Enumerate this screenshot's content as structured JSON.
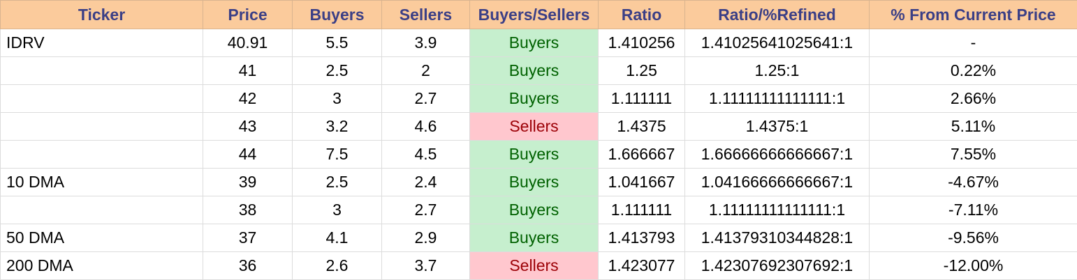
{
  "colors": {
    "header_bg": "#fbcb9c",
    "header_text": "#3b3f86",
    "buyers_bg": "#c6efce",
    "buyers_text": "#006100",
    "sellers_bg": "#ffc7ce",
    "sellers_text": "#9c0006"
  },
  "headers": [
    "Ticker",
    "Price",
    "Buyers",
    "Sellers",
    "Buyers/Sellers",
    "Ratio",
    "Ratio/%Refined",
    "% From Current Price"
  ],
  "rows": [
    {
      "ticker": "IDRV",
      "price": "40.91",
      "buyers": "5.5",
      "sellers": "3.9",
      "signal": "Buyers",
      "ratio": "1.410256",
      "refined": "1.41025641025641:1",
      "pct": "-"
    },
    {
      "ticker": "",
      "price": "41",
      "buyers": "2.5",
      "sellers": "2",
      "signal": "Buyers",
      "ratio": "1.25",
      "refined": "1.25:1",
      "pct": "0.22%"
    },
    {
      "ticker": "",
      "price": "42",
      "buyers": "3",
      "sellers": "2.7",
      "signal": "Buyers",
      "ratio": "1.111111",
      "refined": "1.11111111111111:1",
      "pct": "2.66%"
    },
    {
      "ticker": "",
      "price": "43",
      "buyers": "3.2",
      "sellers": "4.6",
      "signal": "Sellers",
      "ratio": "1.4375",
      "refined": "1.4375:1",
      "pct": "5.11%"
    },
    {
      "ticker": "",
      "price": "44",
      "buyers": "7.5",
      "sellers": "4.5",
      "signal": "Buyers",
      "ratio": "1.666667",
      "refined": "1.66666666666667:1",
      "pct": "7.55%"
    },
    {
      "ticker": "10 DMA",
      "price": "39",
      "buyers": "2.5",
      "sellers": "2.4",
      "signal": "Buyers",
      "ratio": "1.041667",
      "refined": "1.04166666666667:1",
      "pct": "-4.67%"
    },
    {
      "ticker": "",
      "price": "38",
      "buyers": "3",
      "sellers": "2.7",
      "signal": "Buyers",
      "ratio": "1.111111",
      "refined": "1.11111111111111:1",
      "pct": "-7.11%"
    },
    {
      "ticker": "50 DMA",
      "price": "37",
      "buyers": "4.1",
      "sellers": "2.9",
      "signal": "Buyers",
      "ratio": "1.413793",
      "refined": "1.41379310344828:1",
      "pct": "-9.56%"
    },
    {
      "ticker": "200 DMA",
      "price": "36",
      "buyers": "2.6",
      "sellers": "3.7",
      "signal": "Sellers",
      "ratio": "1.423077",
      "refined": "1.42307692307692:1",
      "pct": "-12.00%"
    }
  ]
}
